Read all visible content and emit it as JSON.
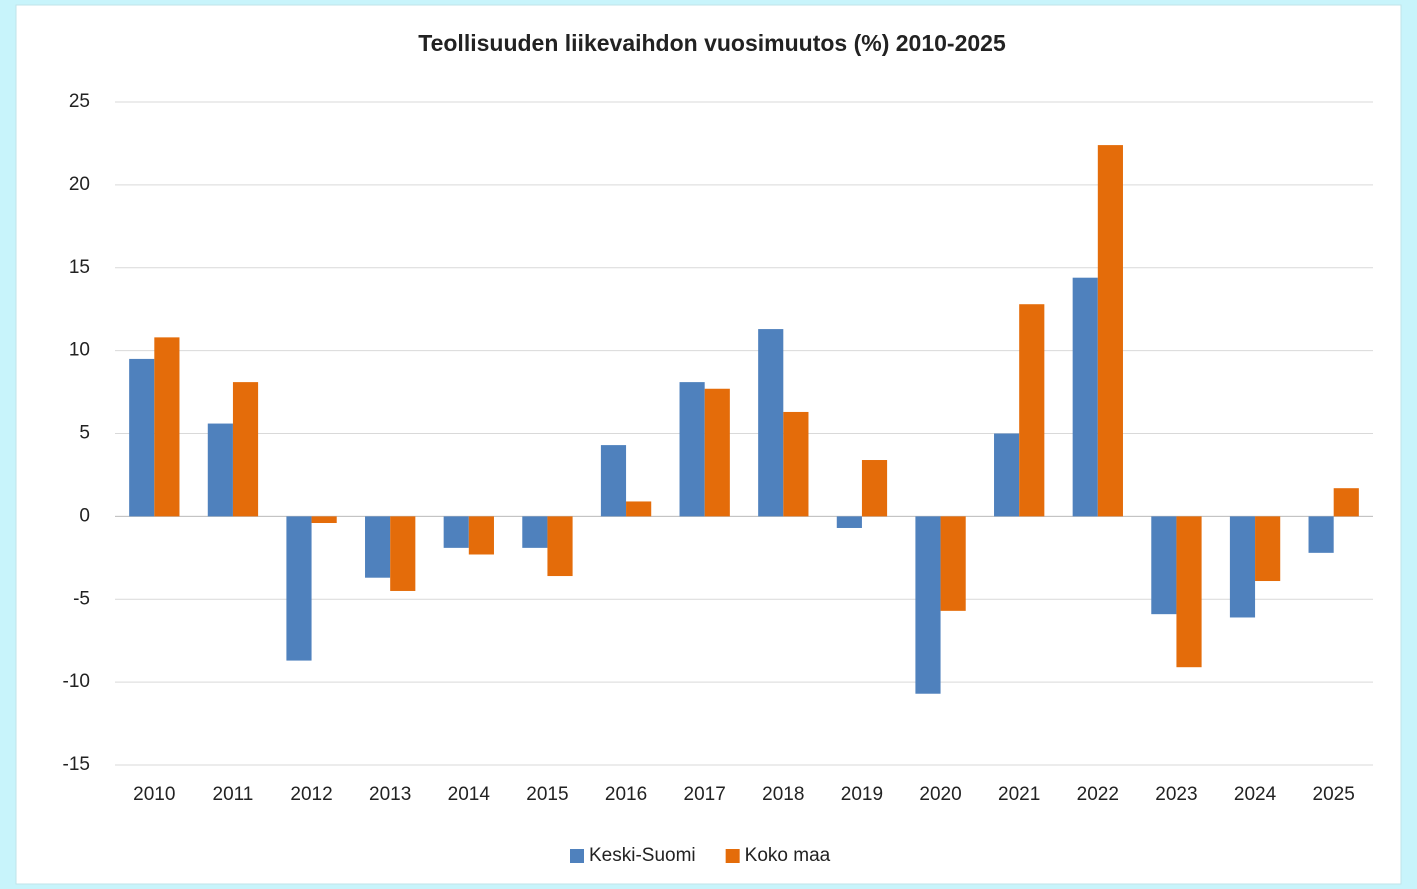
{
  "chart_data": {
    "type": "bar",
    "title": "Teollisuuden liikevaihdon vuosimuutos (%) 2010-2025",
    "categories": [
      "2010",
      "2011",
      "2012",
      "2013",
      "2014",
      "2015",
      "2016",
      "2017",
      "2018",
      "2019",
      "2020",
      "2021",
      "2022",
      "2023",
      "2024",
      "2025"
    ],
    "series": [
      {
        "name": "Keski-Suomi",
        "color": "#4f81bd",
        "values": [
          9.5,
          5.6,
          -8.7,
          -3.7,
          -1.9,
          -1.9,
          4.3,
          8.1,
          11.3,
          -0.7,
          -10.7,
          5.0,
          14.4,
          -5.9,
          -6.1,
          -2.2
        ]
      },
      {
        "name": "Koko maa",
        "color": "#e46c0a",
        "values": [
          10.8,
          8.1,
          -0.4,
          -4.5,
          -2.3,
          -3.6,
          0.9,
          7.7,
          6.3,
          3.4,
          -5.7,
          12.8,
          22.4,
          -9.1,
          -3.9,
          1.7
        ]
      }
    ],
    "ylim": [
      -15,
      25
    ],
    "yticks": [
      -15,
      -10,
      -5,
      0,
      5,
      10,
      15,
      20,
      25
    ],
    "grid": true,
    "legend": "bottom"
  }
}
